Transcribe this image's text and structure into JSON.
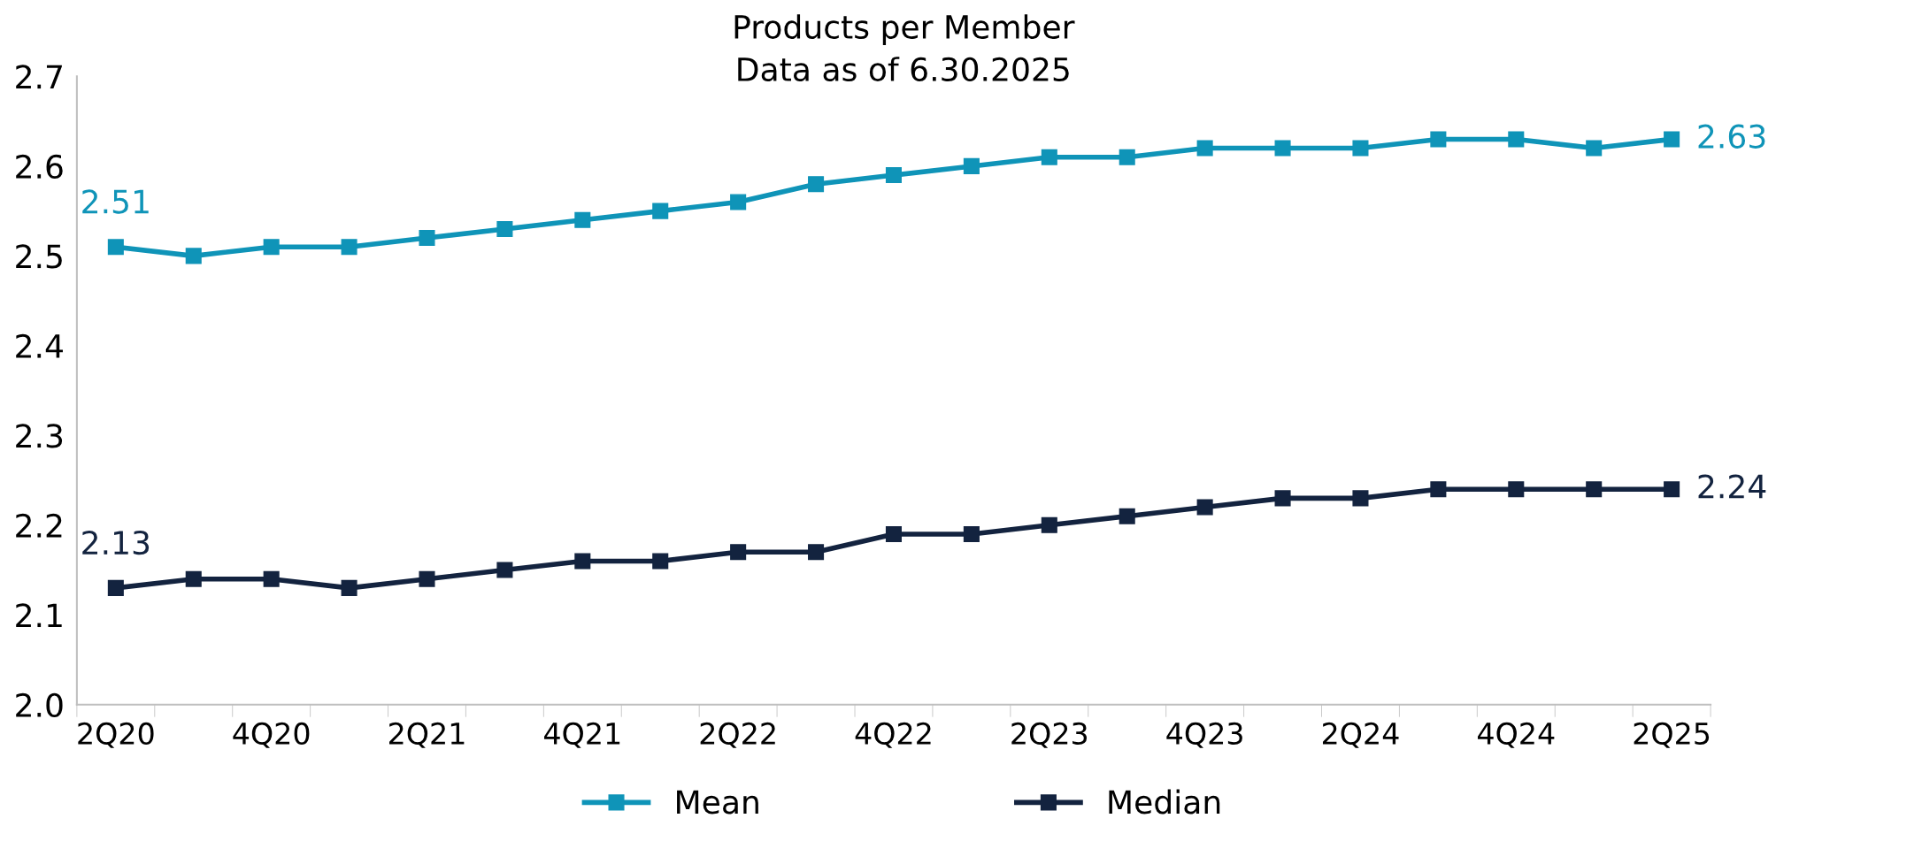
{
  "chart_data": {
    "type": "line",
    "title": "Products per Member",
    "subtitle": "Data as of 6.30.2025",
    "categories": [
      "2Q20",
      null,
      "4Q20",
      null,
      "2Q21",
      null,
      "4Q21",
      null,
      "2Q22",
      null,
      "4Q22",
      null,
      "2Q23",
      null,
      "4Q23",
      null,
      "2Q24",
      null,
      "4Q24",
      null,
      "2Q25"
    ],
    "series": [
      {
        "name": "Mean",
        "color": "#0f94b8",
        "values": [
          2.51,
          2.5,
          2.51,
          2.51,
          2.52,
          2.53,
          2.54,
          2.55,
          2.56,
          2.58,
          2.59,
          2.6,
          2.61,
          2.61,
          2.62,
          2.62,
          2.62,
          2.63,
          2.63,
          2.62,
          2.63
        ],
        "value_labels": [
          "2.51",
          null,
          null,
          null,
          null,
          null,
          null,
          null,
          null,
          null,
          null,
          null,
          null,
          null,
          null,
          null,
          null,
          null,
          null,
          null,
          "2.63"
        ]
      },
      {
        "name": "Median",
        "color": "#13233f",
        "values": [
          2.13,
          2.14,
          2.14,
          2.13,
          2.14,
          2.15,
          2.16,
          2.16,
          2.17,
          2.17,
          2.19,
          2.19,
          2.2,
          2.21,
          2.22,
          2.23,
          2.23,
          2.24,
          2.24,
          2.24,
          2.24
        ],
        "value_labels": [
          "2.13",
          null,
          null,
          null,
          null,
          null,
          null,
          null,
          null,
          null,
          null,
          null,
          null,
          null,
          null,
          null,
          null,
          null,
          null,
          null,
          "2.24"
        ]
      }
    ],
    "ylim": [
      2.0,
      2.7
    ],
    "yticks": [
      {
        "value": 2.0,
        "label": "2.0"
      },
      2.1,
      2.2,
      2.3,
      2.4,
      2.5,
      2.6,
      2.7
    ],
    "marker": "square",
    "line_style": "solid",
    "grid": false,
    "legend": "bottom"
  }
}
